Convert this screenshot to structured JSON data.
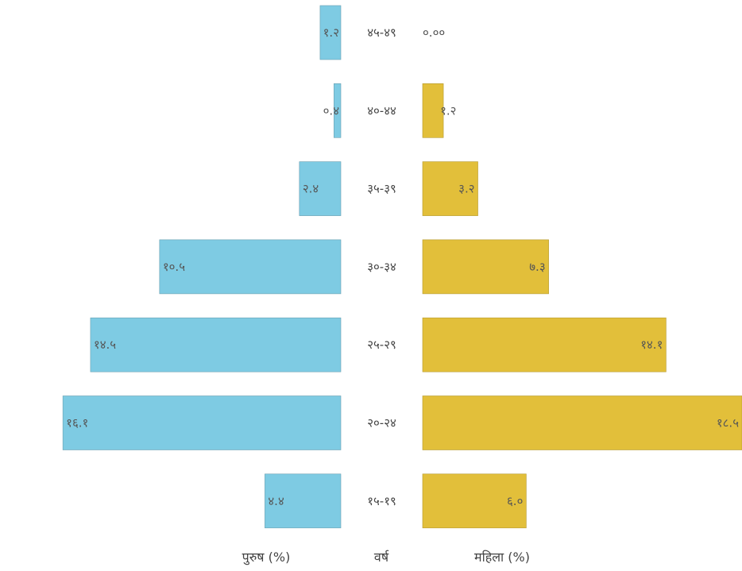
{
  "chart_data": {
    "type": "bar",
    "orientation": "horizontal-pyramid",
    "categories": [
      "४५-४९",
      "४०-४४",
      "३५-३९",
      "३०-३४",
      "२५-२९",
      "२०-२४",
      "१५-१९"
    ],
    "series": [
      {
        "name": "पुरुष (%)",
        "values": [
          1.2,
          0.4,
          2.4,
          10.5,
          14.5,
          16.1,
          4.4
        ],
        "labels": [
          "१.२",
          "०.४",
          "२.४",
          "१०.५",
          "१४.५",
          "१६.१",
          "४.४"
        ],
        "color": "#7ecbe3",
        "side": "left"
      },
      {
        "name": "महिला (%)",
        "values": [
          0,
          1.2,
          3.2,
          7.3,
          14.1,
          18.5,
          6.0
        ],
        "labels": [
          "०.००",
          "१.२",
          "३.२",
          "७.३",
          "१४.१",
          "१८.५",
          "६.०"
        ],
        "color": "#e2bf3a",
        "side": "right"
      }
    ],
    "xlabel_left": "पुरुष (%)",
    "xlabel_center": "वर्ष",
    "xlabel_right": "महिला (%)",
    "xlim": [
      0,
      18.5
    ],
    "grid": false,
    "legend": "none"
  }
}
